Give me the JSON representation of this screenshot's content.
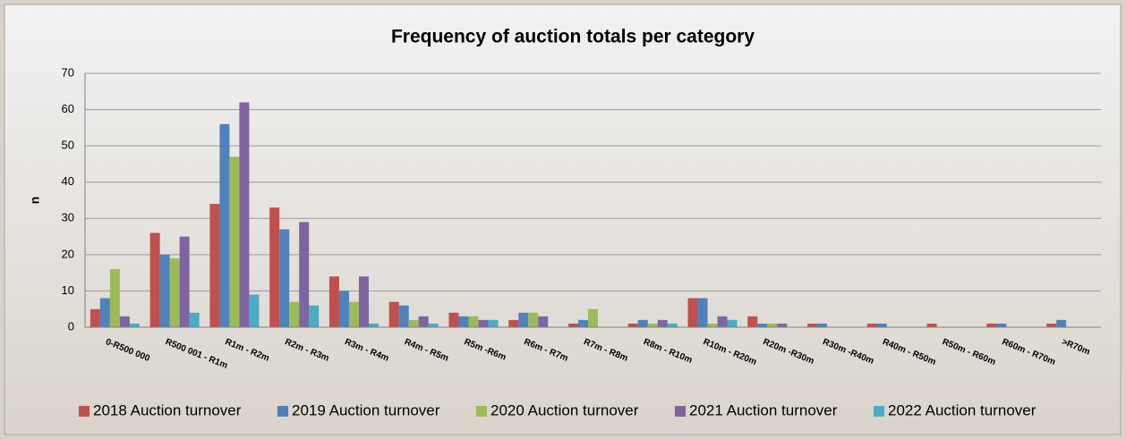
{
  "chart_data": {
    "type": "bar",
    "title": "Frequency of auction totals per category",
    "y_label": "n",
    "categories": [
      "0-R500 000",
      "R500 001 - R1m",
      "R1m - R2m",
      "R2m - R3m",
      "R3m - R4m",
      "R4m - R5m",
      "R5m -R6m",
      "R6m - R7m",
      "R7m - R8m",
      "R8m - R10m",
      "R10m - R20m",
      "R20m -R30m",
      "R30m -R40m",
      "R40m - R50m",
      "R50m - R60m",
      "R60m - R70m",
      ">R70m"
    ],
    "series": [
      {
        "name": "2018 Auction turnover",
        "color": "#c0504d",
        "values": [
          5,
          26,
          34,
          33,
          14,
          7,
          4,
          2,
          1,
          1,
          8,
          3,
          1,
          1,
          1,
          1,
          1
        ]
      },
      {
        "name": "2019 Auction turnover",
        "color": "#4f81bd",
        "values": [
          8,
          20,
          56,
          27,
          10,
          6,
          3,
          4,
          2,
          2,
          8,
          1,
          1,
          1,
          0,
          1,
          2
        ]
      },
      {
        "name": "2020 Auction turnover",
        "color": "#9bbb59",
        "values": [
          16,
          19,
          47,
          7,
          7,
          2,
          3,
          4,
          5,
          1,
          1,
          1,
          0,
          0,
          0,
          0,
          0
        ]
      },
      {
        "name": "2021 Auction turnover",
        "color": "#8064a2",
        "values": [
          3,
          25,
          62,
          29,
          14,
          3,
          2,
          3,
          0,
          2,
          3,
          1,
          0,
          0,
          0,
          0,
          0
        ]
      },
      {
        "name": "2022 Auction turnover",
        "color": "#4bacc6",
        "values": [
          1,
          4,
          9,
          6,
          1,
          1,
          2,
          0,
          0,
          1,
          2,
          0,
          0,
          0,
          0,
          0,
          0
        ]
      }
    ],
    "ylim": [
      0,
      70
    ],
    "yticks": [
      0,
      10,
      20,
      30,
      40,
      50,
      60,
      70
    ],
    "grid": true,
    "legend": "bottom"
  }
}
